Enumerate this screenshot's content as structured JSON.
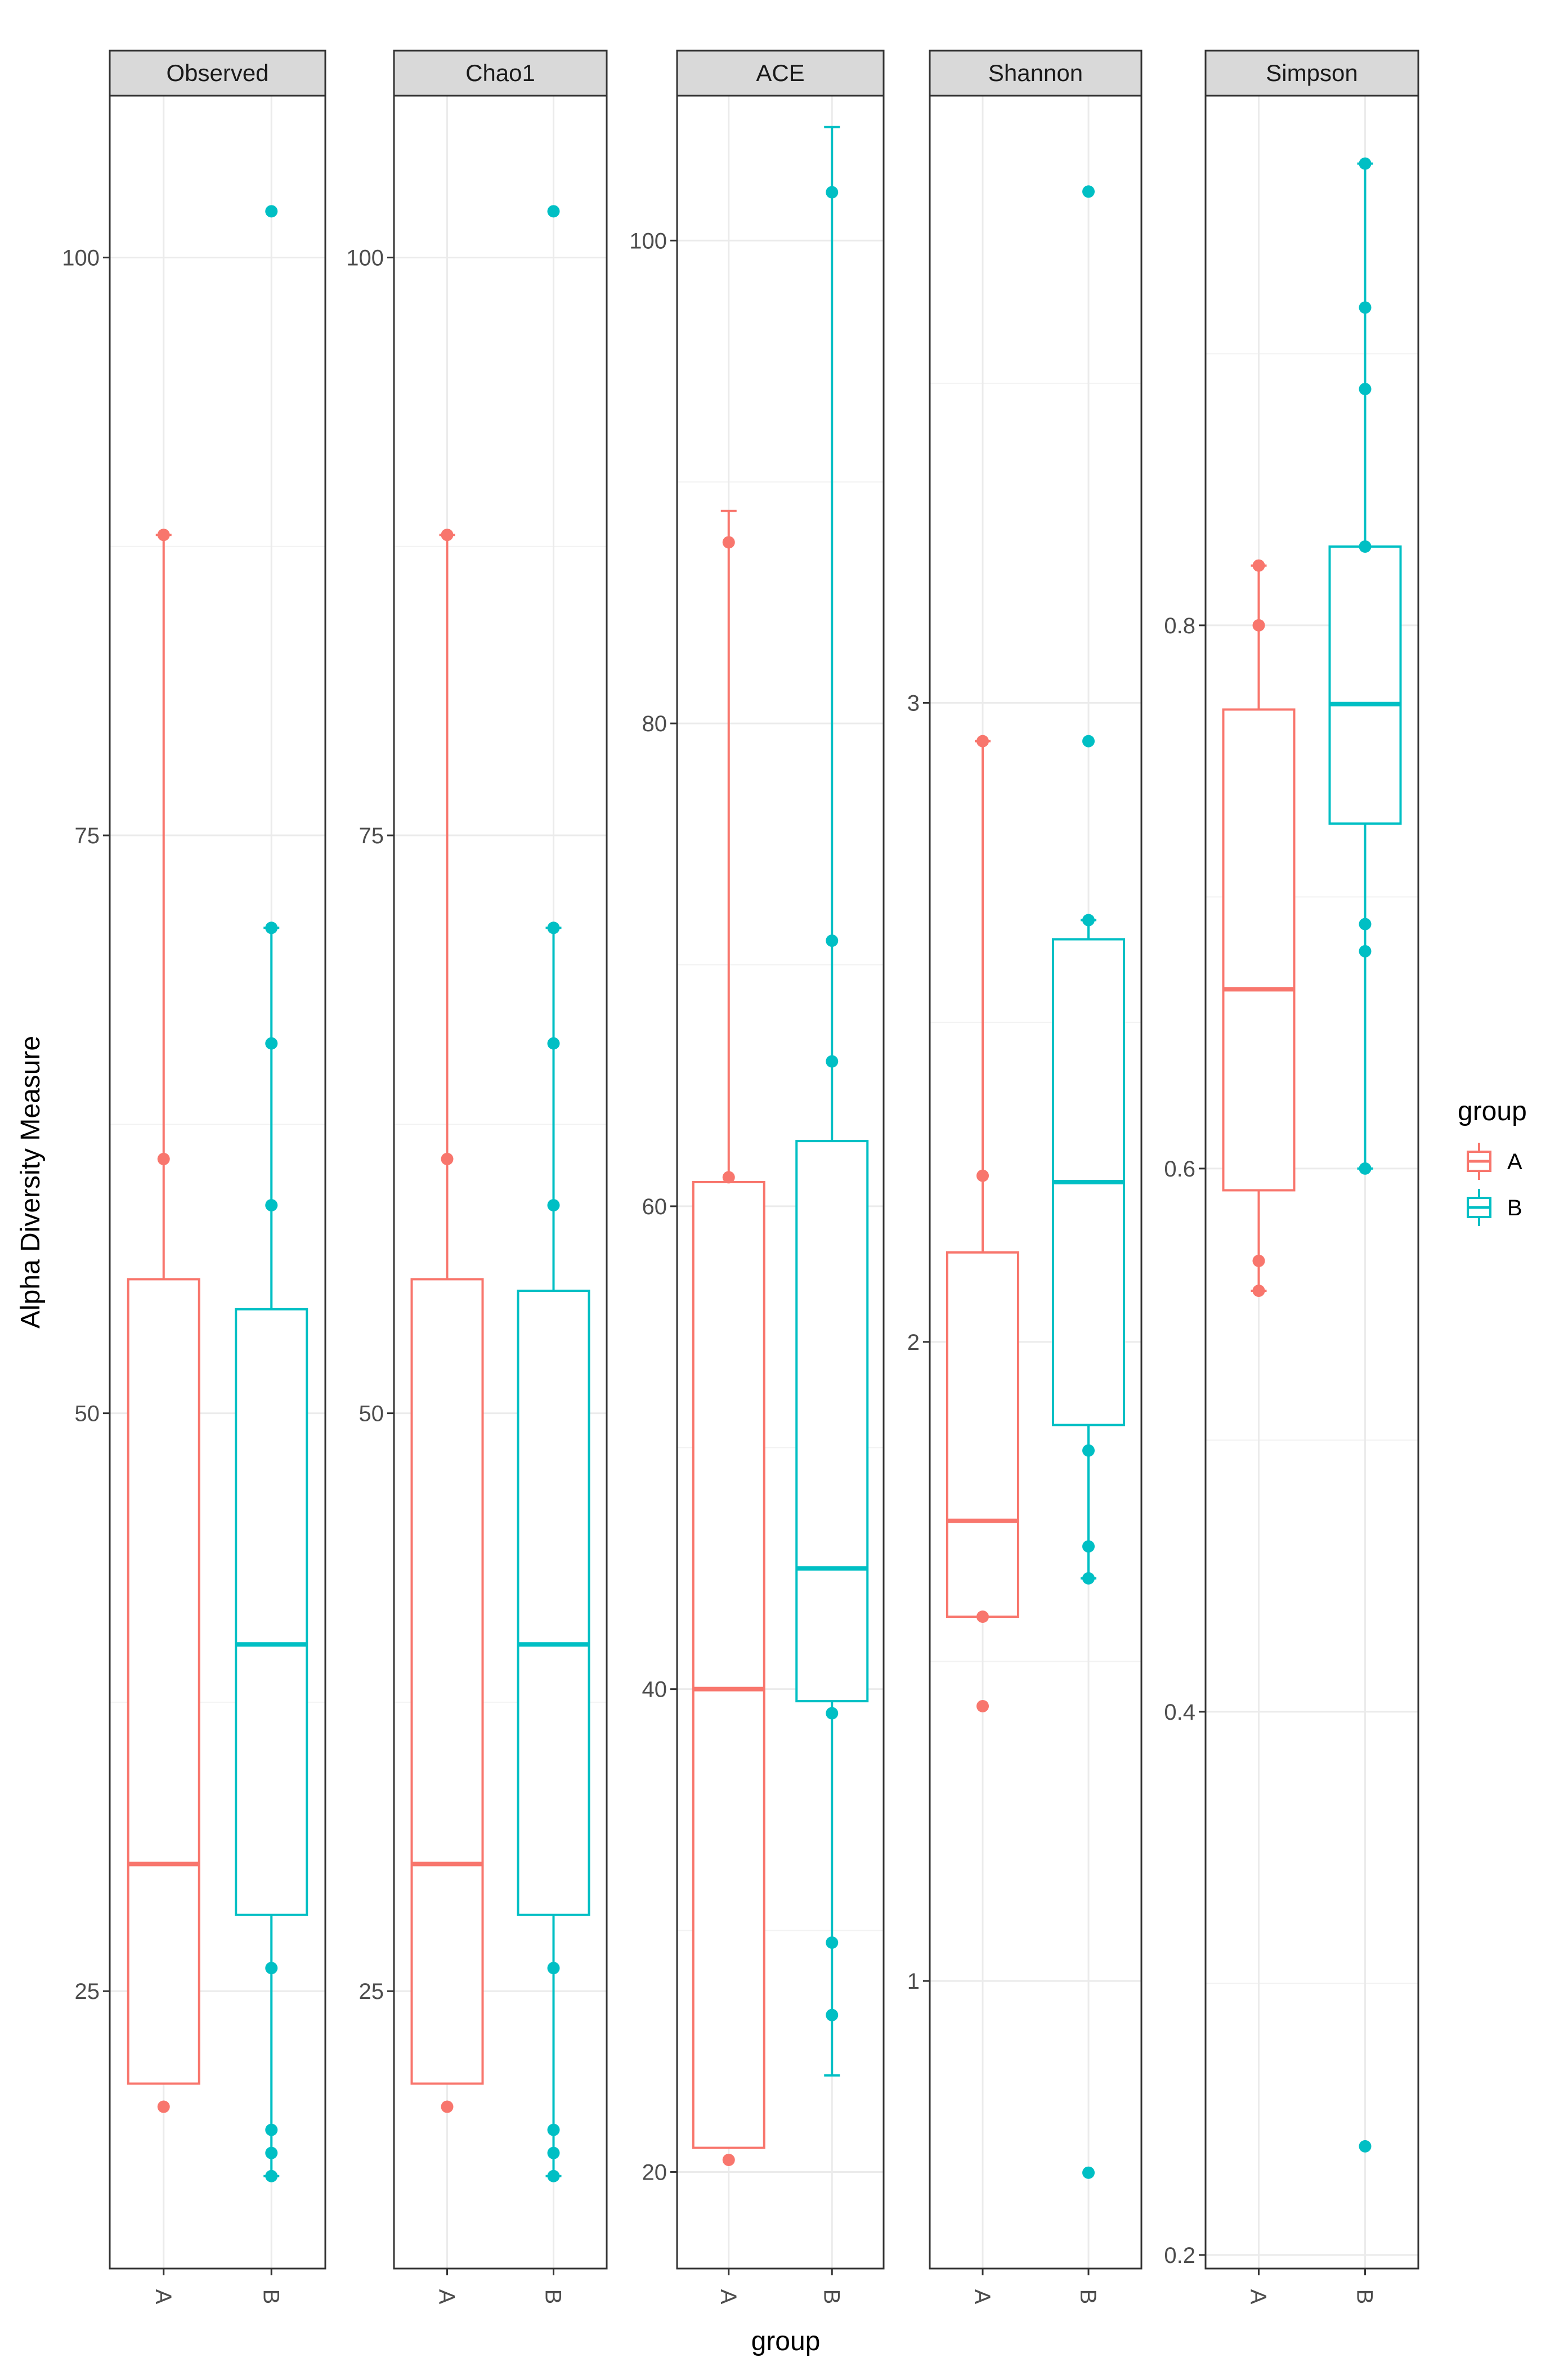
{
  "chart_data": {
    "type": "box",
    "ylabel": "Alpha Diversity Measure",
    "xlabel": "group",
    "categories": [
      "A",
      "B"
    ],
    "colors": {
      "A": "#F8766D",
      "B": "#00BFC4"
    },
    "legend": {
      "title": "group",
      "labels": [
        "A",
        "B"
      ],
      "position": "right"
    },
    "panels": [
      {
        "title": "Observed",
        "ylim": [
          13,
          107
        ],
        "yticks": [
          25,
          50,
          75,
          100
        ],
        "ytick_labels": [
          "25",
          "50",
          "75",
          "100"
        ],
        "boxes": {
          "A": {
            "q1": 21,
            "median": 30.5,
            "q3": 55.8,
            "whisker_low": 21,
            "whisker_high": 88,
            "points": [
              88,
              61,
              20
            ]
          },
          "B": {
            "q1": 28.3,
            "median": 40,
            "q3": 54.5,
            "whisker_low": 17,
            "whisker_high": 71,
            "points": [
              102,
              71,
              66,
              59,
              26,
              19,
              18,
              17
            ]
          }
        }
      },
      {
        "title": "Chao1",
        "ylim": [
          13,
          107
        ],
        "yticks": [
          25,
          50,
          75,
          100
        ],
        "ytick_labels": [
          "25",
          "50",
          "75",
          "100"
        ],
        "boxes": {
          "A": {
            "q1": 21,
            "median": 30.5,
            "q3": 55.8,
            "whisker_low": 21,
            "whisker_high": 88,
            "points": [
              88,
              61,
              20
            ]
          },
          "B": {
            "q1": 28.3,
            "median": 40,
            "q3": 55.3,
            "whisker_low": 17,
            "whisker_high": 71,
            "points": [
              102,
              71,
              66,
              59,
              26,
              19,
              18,
              17
            ]
          }
        }
      },
      {
        "title": "ACE",
        "ylim": [
          16,
          106
        ],
        "yticks": [
          20,
          40,
          60,
          80,
          100
        ],
        "ytick_labels": [
          "20",
          "40",
          "60",
          "80",
          "100"
        ],
        "boxes": {
          "A": {
            "q1": 21,
            "median": 40,
            "q3": 61,
            "whisker_low": 21,
            "whisker_high": 88.8,
            "points": [
              87.5,
              61.2,
              20.5
            ]
          },
          "B": {
            "q1": 39.5,
            "median": 45,
            "q3": 62.7,
            "whisker_low": 24,
            "whisker_high": 104.7,
            "points": [
              102,
              71,
              66,
              39,
              29.5,
              26.5
            ]
          }
        }
      },
      {
        "title": "Shannon",
        "ylim": [
          0.55,
          3.95
        ],
        "yticks": [
          1,
          2,
          3
        ],
        "ytick_labels": [
          "1",
          "2",
          "3"
        ],
        "boxes": {
          "A": {
            "q1": 1.57,
            "median": 1.72,
            "q3": 2.14,
            "whisker_low": 1.57,
            "whisker_high": 2.94,
            "points": [
              2.94,
              2.26,
              1.57,
              1.43
            ]
          },
          "B": {
            "q1": 1.87,
            "median": 2.25,
            "q3": 2.63,
            "whisker_low": 1.63,
            "whisker_high": 2.66,
            "points": [
              3.8,
              2.94,
              2.66,
              1.83,
              1.68,
              1.63,
              0.7
            ]
          }
        }
      },
      {
        "title": "Simpson",
        "ylim": [
          0.195,
          0.995
        ],
        "yticks": [
          0.2,
          0.4,
          0.6,
          0.8
        ],
        "ytick_labels": [
          "0.2",
          "0.4",
          "0.6",
          "0.8"
        ],
        "boxes": {
          "A": {
            "q1": 0.592,
            "median": 0.666,
            "q3": 0.769,
            "whisker_low": 0.555,
            "whisker_high": 0.822,
            "points": [
              0.822,
              0.8,
              0.566,
              0.555
            ]
          },
          "B": {
            "q1": 0.727,
            "median": 0.771,
            "q3": 0.829,
            "whisker_low": 0.6,
            "whisker_high": 0.97,
            "points": [
              0.97,
              0.917,
              0.887,
              0.829,
              0.69,
              0.68,
              0.6,
              0.24
            ]
          }
        }
      }
    ]
  }
}
